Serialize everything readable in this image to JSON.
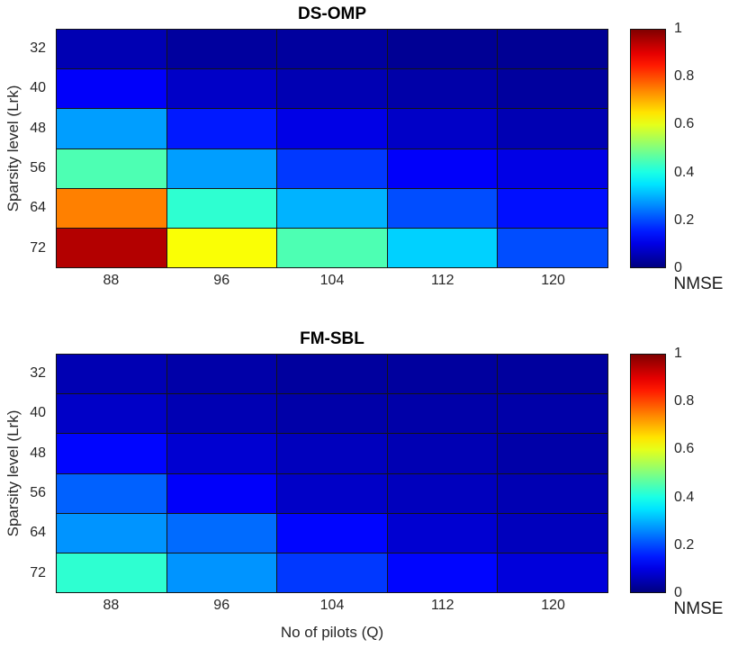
{
  "figure": {
    "colorbar_label": "NMSE",
    "colormap": "jet"
  },
  "chart_data": [
    {
      "type": "heatmap",
      "title": "DS-OMP",
      "xlabel": "",
      "ylabel": "Sparsity level (Lrk)",
      "x_tick_labels": [
        "88",
        "96",
        "104",
        "112",
        "120"
      ],
      "y_tick_labels": [
        "32",
        "40",
        "48",
        "56",
        "64",
        "72"
      ],
      "colorbar_label": "NMSE",
      "colorbar_tick_labels": [
        "1",
        "0.8",
        "0.6",
        "0.4",
        "0.2",
        "0"
      ],
      "colorbar_range": [
        0,
        1
      ],
      "colormap": "jet",
      "values": [
        [
          0.05,
          0.03,
          0.03,
          0.02,
          0.02
        ],
        [
          0.12,
          0.07,
          0.05,
          0.04,
          0.03
        ],
        [
          0.28,
          0.15,
          0.1,
          0.07,
          0.05
        ],
        [
          0.45,
          0.28,
          0.18,
          0.12,
          0.1
        ],
        [
          0.75,
          0.42,
          0.3,
          0.2,
          0.14
        ],
        [
          0.95,
          0.62,
          0.45,
          0.33,
          0.2
        ]
      ]
    },
    {
      "type": "heatmap",
      "title": "FM-SBL",
      "xlabel": "No of pilots (Q)",
      "ylabel": "Sparsity level (Lrk)",
      "x_tick_labels": [
        "88",
        "96",
        "104",
        "112",
        "120"
      ],
      "y_tick_labels": [
        "32",
        "40",
        "48",
        "56",
        "64",
        "72"
      ],
      "colorbar_label": "NMSE",
      "colorbar_tick_labels": [
        "1",
        "0.8",
        "0.6",
        "0.4",
        "0.2",
        "0"
      ],
      "colorbar_range": [
        0,
        1
      ],
      "colormap": "jet",
      "values": [
        [
          0.05,
          0.04,
          0.03,
          0.03,
          0.03
        ],
        [
          0.07,
          0.05,
          0.04,
          0.04,
          0.04
        ],
        [
          0.13,
          0.08,
          0.06,
          0.05,
          0.04
        ],
        [
          0.22,
          0.12,
          0.07,
          0.06,
          0.05
        ],
        [
          0.27,
          0.23,
          0.13,
          0.08,
          0.06
        ],
        [
          0.42,
          0.27,
          0.18,
          0.13,
          0.09
        ]
      ]
    }
  ]
}
